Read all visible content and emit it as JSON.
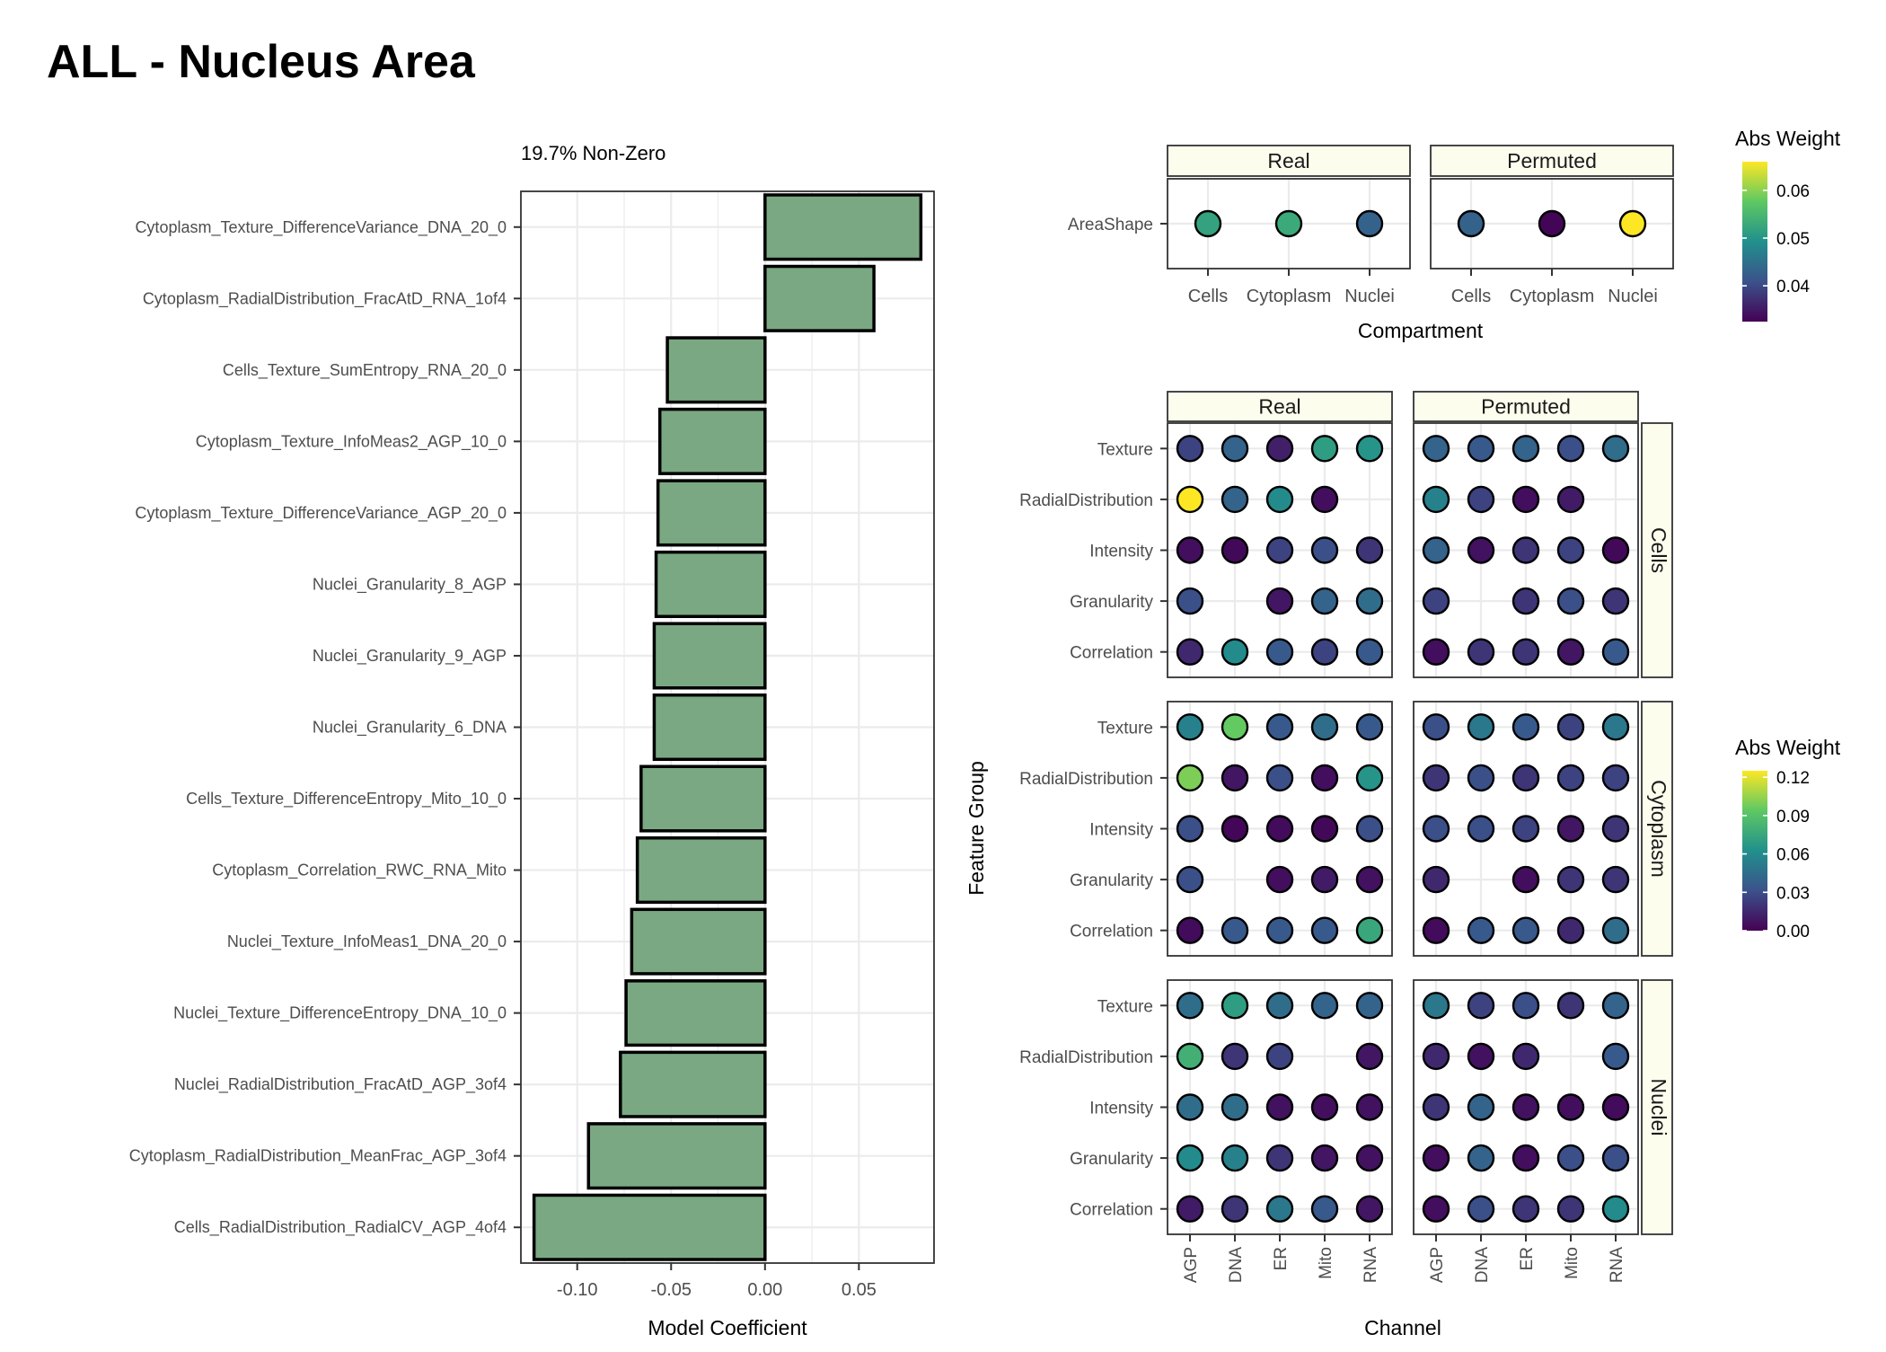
{
  "title": "ALL - Nucleus Area",
  "colors": {
    "bar_fill": "#7aa882",
    "bar_stroke": "#000000",
    "strip_fill": "#fdfdee",
    "grid": "#ebebeb",
    "viridis": [
      "#440154",
      "#3b528b",
      "#21908c",
      "#5dc863",
      "#fde725"
    ]
  },
  "chart_data": [
    {
      "type": "bar",
      "orientation": "horizontal",
      "subtitle": "19.7% Non-Zero",
      "xlabel": "Model Coefficient",
      "xlim": [
        -0.13,
        0.09
      ],
      "xticks": [
        -0.1,
        -0.05,
        0.0,
        0.05
      ],
      "xtick_labels": [
        "-0.10",
        "-0.05",
        "0.00",
        "0.05"
      ],
      "grid": true,
      "categories": [
        "Cytoplasm_Texture_DifferenceVariance_DNA_20_0",
        "Cytoplasm_RadialDistribution_FracAtD_RNA_1of4",
        "Cells_Texture_SumEntropy_RNA_20_0",
        "Cytoplasm_Texture_InfoMeas2_AGP_10_0",
        "Cytoplasm_Texture_DifferenceVariance_AGP_20_0",
        "Nuclei_Granularity_8_AGP",
        "Nuclei_Granularity_9_AGP",
        "Nuclei_Granularity_6_DNA",
        "Cells_Texture_DifferenceEntropy_Mito_10_0",
        "Cytoplasm_Correlation_RWC_RNA_Mito",
        "Nuclei_Texture_InfoMeas1_DNA_20_0",
        "Nuclei_Texture_DifferenceEntropy_DNA_10_0",
        "Nuclei_RadialDistribution_FracAtD_AGP_3of4",
        "Cytoplasm_RadialDistribution_MeanFrac_AGP_3of4",
        "Cells_RadialDistribution_RadialCV_AGP_4of4"
      ],
      "values": [
        0.083,
        0.058,
        -0.052,
        -0.056,
        -0.057,
        -0.058,
        -0.059,
        -0.059,
        -0.066,
        -0.068,
        -0.071,
        -0.074,
        -0.077,
        -0.094,
        -0.123
      ]
    },
    {
      "type": "scatter",
      "xlabel": "Compartment",
      "ylabel": "",
      "facets": [
        "Real",
        "Permuted"
      ],
      "x_categories": [
        "Cells",
        "Cytoplasm",
        "Nuclei"
      ],
      "y_categories": [
        "AreaShape"
      ],
      "legend": {
        "title": "Abs Weight",
        "range": [
          0.0325,
          0.066
        ],
        "ticks": [
          0.04,
          0.05,
          0.06
        ],
        "tick_labels": [
          "0.04",
          "0.05",
          "0.06"
        ],
        "placement": "right"
      },
      "points": {
        "Real": [
          [
            0.052,
            0.053,
            0.043
          ]
        ],
        "Permuted": [
          [
            0.043,
            0.033,
            0.066
          ]
        ]
      }
    },
    {
      "type": "scatter",
      "xlabel": "Channel",
      "ylabel": "Feature Group",
      "col_facets": [
        "Real",
        "Permuted"
      ],
      "row_facets": [
        "Cells",
        "Cytoplasm",
        "Nuclei"
      ],
      "x_categories": [
        "AGP",
        "DNA",
        "ER",
        "Mito",
        "RNA"
      ],
      "y_categories": [
        "Texture",
        "RadialDistribution",
        "Intensity",
        "Granularity",
        "Correlation"
      ],
      "legend": {
        "title": "Abs Weight",
        "range": [
          0,
          0.125
        ],
        "ticks": [
          0.0,
          0.03,
          0.06,
          0.09,
          0.12
        ],
        "tick_labels": [
          "0.00",
          "0.03",
          "0.06",
          "0.09",
          "0.12"
        ],
        "placement": "right"
      },
      "points": {
        "Cells": {
          "Real": [
            [
              0.025,
              0.04,
              0.012,
              0.07,
              0.065
            ],
            [
              0.125,
              0.04,
              0.06,
              0.005,
              null
            ],
            [
              0.005,
              0.003,
              0.025,
              0.03,
              0.02
            ],
            [
              0.03,
              null,
              0.008,
              0.04,
              0.045
            ],
            [
              0.015,
              0.06,
              0.035,
              0.025,
              0.035
            ]
          ],
          "Permuted": [
            [
              0.04,
              0.035,
              0.04,
              0.03,
              0.045
            ],
            [
              0.055,
              0.025,
              0.005,
              0.01,
              null
            ],
            [
              0.04,
              0.006,
              0.02,
              0.025,
              0.003
            ],
            [
              0.025,
              null,
              0.02,
              0.03,
              0.02
            ],
            [
              0.005,
              0.02,
              0.02,
              0.008,
              0.035
            ]
          ]
        },
        "Cytoplasm": {
          "Real": [
            [
              0.055,
              0.095,
              0.035,
              0.045,
              0.035
            ],
            [
              0.1,
              0.008,
              0.03,
              0.005,
              0.065
            ],
            [
              0.03,
              0.002,
              0.004,
              0.003,
              0.03
            ],
            [
              0.03,
              null,
              0.005,
              0.01,
              0.006
            ],
            [
              0.004,
              0.035,
              0.035,
              0.035,
              0.075
            ]
          ],
          "Permuted": [
            [
              0.03,
              0.05,
              0.035,
              0.025,
              0.05
            ],
            [
              0.02,
              0.03,
              0.02,
              0.025,
              0.025
            ],
            [
              0.03,
              0.03,
              0.025,
              0.008,
              0.02
            ],
            [
              0.015,
              null,
              0.005,
              0.02,
              0.02
            ],
            [
              0.004,
              0.035,
              0.035,
              0.015,
              0.045
            ]
          ]
        },
        "Nuclei": {
          "Real": [
            [
              0.045,
              0.07,
              0.045,
              0.04,
              0.04
            ],
            [
              0.08,
              0.02,
              0.025,
              null,
              0.008
            ],
            [
              0.045,
              0.045,
              0.006,
              0.005,
              0.006
            ],
            [
              0.06,
              0.055,
              0.02,
              0.008,
              0.006
            ],
            [
              0.01,
              0.02,
              0.05,
              0.035,
              0.008
            ]
          ],
          "Permuted": [
            [
              0.05,
              0.025,
              0.03,
              0.02,
              0.04
            ],
            [
              0.015,
              0.006,
              0.015,
              null,
              0.035
            ],
            [
              0.02,
              0.04,
              0.006,
              0.005,
              0.004
            ],
            [
              0.005,
              0.04,
              0.005,
              0.03,
              0.03
            ],
            [
              0.005,
              0.03,
              0.02,
              0.02,
              0.06
            ]
          ]
        }
      }
    }
  ]
}
